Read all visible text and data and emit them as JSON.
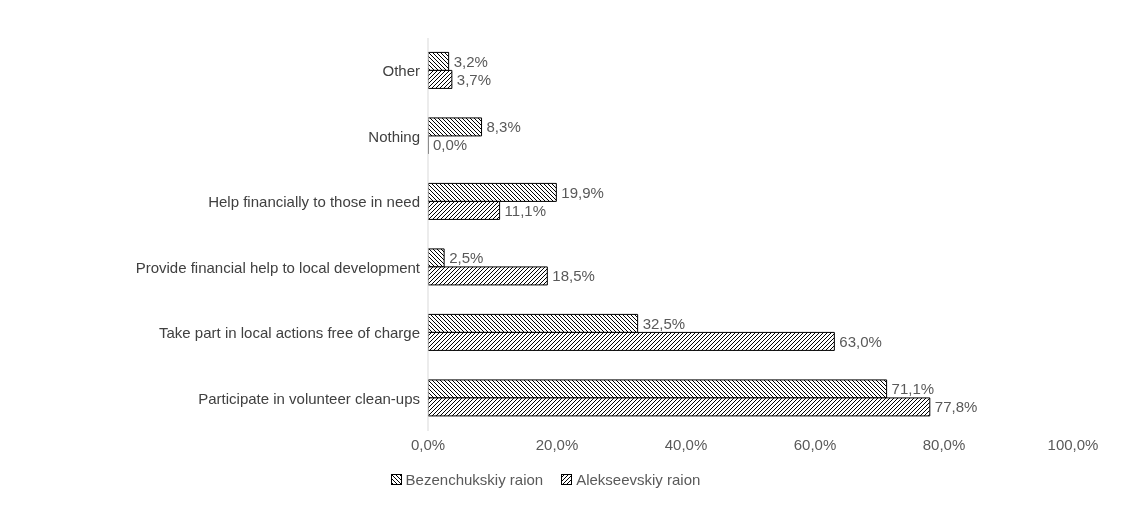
{
  "chart_data": {
    "type": "bar",
    "orientation": "horizontal",
    "categories": [
      "Other",
      "Nothing",
      "Help financially to  those in need",
      "Provide financial help to local development",
      "Take part in local actions free of charge",
      "Participate in volunteer  clean-ups"
    ],
    "series": [
      {
        "name": "Bezenchukskiy raion",
        "color": "#000000",
        "values": [
          3.2,
          8.3,
          19.9,
          2.5,
          32.5,
          71.1
        ],
        "value_labels": [
          "3,2%",
          "8,3%",
          "19,9%",
          "2,5%",
          "32,5%",
          "71,1%"
        ]
      },
      {
        "name": "Alekseevskiy raion",
        "color": "#000000",
        "values": [
          3.7,
          0.0,
          11.1,
          18.5,
          63.0,
          77.8
        ],
        "value_labels": [
          "3,7%",
          "0,0%",
          "11,1%",
          "18,5%",
          "63,0%",
          "77,8%"
        ]
      }
    ],
    "xlim": [
      0,
      100
    ],
    "xticks": [
      {
        "value": 0,
        "label": "0,0%"
      },
      {
        "value": 20,
        "label": "20,0%"
      },
      {
        "value": 40,
        "label": "40,0%"
      },
      {
        "value": 60,
        "label": "60,0%"
      },
      {
        "value": 80,
        "label": "80,0%"
      },
      {
        "value": 100,
        "label": "100,0%"
      }
    ],
    "grid": false,
    "legend": "bottom"
  }
}
